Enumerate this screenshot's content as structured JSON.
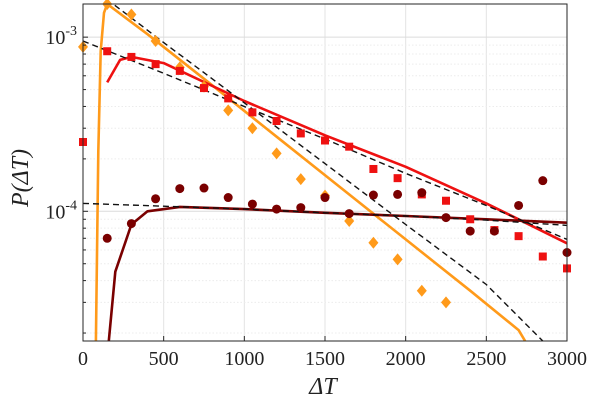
{
  "chart_data": {
    "type": "scatter",
    "xlabel": "ΔT",
    "ylabel": "P(ΔT)",
    "xlim": [
      0,
      3000
    ],
    "ylim": [
      1.8e-05,
      0.00155
    ],
    "yscale": "log",
    "grid": true,
    "legend": "none",
    "x_ticks": [
      "0",
      "500",
      "1000",
      "1500",
      "2000",
      "2500",
      "3000"
    ],
    "y_ticks": [
      {
        "value": 0.0001,
        "base": "10",
        "exp": "-4"
      },
      {
        "value": 0.001,
        "base": "10",
        "exp": "-3"
      }
    ],
    "series": [
      {
        "marker": "diamond",
        "color": "#ff9a1a",
        "points": [
          [
            0,
            0.00088
          ],
          [
            150,
            0.00155
          ],
          [
            300,
            0.00135
          ],
          [
            450,
            0.00095
          ],
          [
            600,
            0.00067
          ],
          [
            750,
            0.00052
          ],
          [
            900,
            0.00038
          ],
          [
            1050,
            0.0003
          ],
          [
            1200,
            0.000215
          ],
          [
            1350,
            0.000153
          ],
          [
            1500,
            0.000123
          ],
          [
            1650,
            8.8e-05
          ],
          [
            1800,
            6.6e-05
          ],
          [
            1950,
            5.3e-05
          ],
          [
            2100,
            3.5e-05
          ],
          [
            2250,
            3e-05
          ]
        ],
        "fit_model": [
          [
            80,
            1.8e-05
          ],
          [
            95,
            0.00022
          ],
          [
            110,
            0.00083
          ],
          [
            130,
            0.00138
          ],
          [
            150,
            0.00155
          ],
          [
            400,
            0.00104
          ],
          [
            800,
            0.00053
          ],
          [
            1200,
            0.000268
          ],
          [
            1600,
            0.000136
          ],
          [
            2000,
            6.9e-05
          ],
          [
            2400,
            3.5e-05
          ],
          [
            2700,
            2.08e-05
          ],
          [
            2740,
            1.8e-05
          ]
        ],
        "fit_exponential": [
          [
            0,
            0.0021
          ],
          [
            500,
            0.00093
          ],
          [
            1000,
            0.00042
          ],
          [
            1500,
            0.000188
          ],
          [
            2000,
            8.4e-05
          ],
          [
            2500,
            3.8e-05
          ],
          [
            2850,
            1.8e-05
          ]
        ]
      },
      {
        "marker": "square",
        "color": "#ee1111",
        "points": [
          [
            0,
            0.00025
          ],
          [
            150,
            0.00083
          ],
          [
            300,
            0.00077
          ],
          [
            450,
            0.0007
          ],
          [
            600,
            0.00064
          ],
          [
            750,
            0.00051
          ],
          [
            900,
            0.000445
          ],
          [
            1050,
            0.00037
          ],
          [
            1200,
            0.00033
          ],
          [
            1350,
            0.00028
          ],
          [
            1500,
            0.000255
          ],
          [
            1650,
            0.000235
          ],
          [
            1800,
            0.000175
          ],
          [
            1950,
            0.000155
          ],
          [
            2100,
            0.000125
          ],
          [
            2250,
            0.000115
          ],
          [
            2400,
            9e-05
          ],
          [
            2550,
            7.8e-05
          ],
          [
            2700,
            7.2e-05
          ],
          [
            2850,
            5.5e-05
          ],
          [
            3000,
            4.7e-05
          ]
        ],
        "fit_model": [
          [
            150,
            0.00055
          ],
          [
            230,
            0.00074
          ],
          [
            300,
            0.00077
          ],
          [
            500,
            0.00071
          ],
          [
            1000,
            0.00043
          ],
          [
            1500,
            0.000273
          ],
          [
            2000,
            0.00018
          ],
          [
            2500,
            0.000111
          ],
          [
            3000,
            6.55e-05
          ]
        ],
        "fit_exponential": [
          [
            0,
            0.00095
          ],
          [
            500,
            0.00062
          ],
          [
            1000,
            0.0004
          ],
          [
            1500,
            0.00026
          ],
          [
            2000,
            0.000165
          ],
          [
            2500,
            0.000108
          ],
          [
            3000,
            6.9e-05
          ]
        ]
      },
      {
        "marker": "circle",
        "color": "#7a0000",
        "points": [
          [
            150,
            7e-05
          ],
          [
            300,
            8.5e-05
          ],
          [
            450,
            0.000118
          ],
          [
            600,
            0.000135
          ],
          [
            750,
            0.000136
          ],
          [
            900,
            0.00012
          ],
          [
            1050,
            0.00011
          ],
          [
            1200,
            0.000103
          ],
          [
            1350,
            0.000105
          ],
          [
            1500,
            0.00012
          ],
          [
            1650,
            9.7e-05
          ],
          [
            1800,
            0.000124
          ],
          [
            1950,
            0.000125
          ],
          [
            2100,
            0.000128
          ],
          [
            2250,
            9.2e-05
          ],
          [
            2400,
            7.7e-05
          ],
          [
            2550,
            7.7e-05
          ],
          [
            2700,
            0.000108
          ],
          [
            2850,
            0.00015
          ],
          [
            3000,
            5.8e-05
          ]
        ],
        "fit_model": [
          [
            160,
            1.8e-05
          ],
          [
            200,
            4.5e-05
          ],
          [
            300,
            8.4e-05
          ],
          [
            400,
            0.0001
          ],
          [
            600,
            0.000106
          ],
          [
            1000,
            0.000103
          ],
          [
            1500,
            9.8e-05
          ],
          [
            2000,
            9.4e-05
          ],
          [
            2500,
            9e-05
          ],
          [
            3000,
            8.6e-05
          ]
        ],
        "fit_exponential": [
          [
            0,
            0.000111
          ],
          [
            500,
            0.000107
          ],
          [
            1000,
            0.000103
          ],
          [
            1500,
            9.8e-05
          ],
          [
            2000,
            9.4e-05
          ],
          [
            2500,
            8.9e-05
          ],
          [
            3000,
            8.3e-05
          ]
        ]
      }
    ]
  }
}
